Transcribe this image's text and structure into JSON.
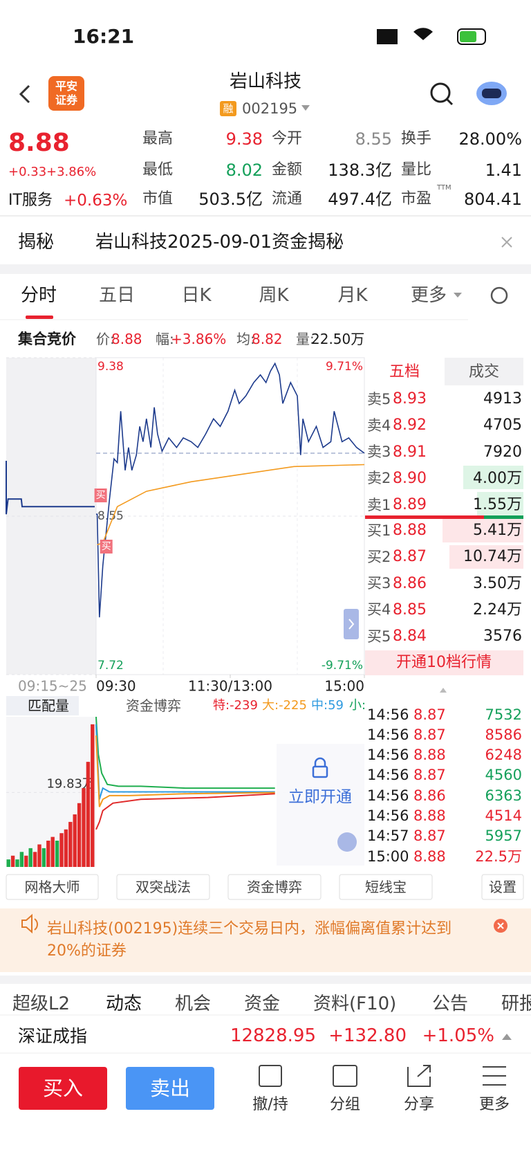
{
  "status_bar": {
    "time": "16:21"
  },
  "header": {
    "logo": [
      "平安",
      "证券"
    ],
    "title": "岩山科技",
    "badge": "融",
    "code": "002195"
  },
  "quote": {
    "price": "8.88",
    "change": "+0.33",
    "change_pct": "+3.86%",
    "sector": "IT服务",
    "sector_pct": "+0.63%",
    "ttm": "TTM",
    "stats": [
      [
        "最高",
        "9.38"
      ],
      [
        "今开",
        "8.55"
      ],
      [
        "换手",
        "28.00%"
      ],
      [
        "最低",
        "8.02"
      ],
      [
        "金额",
        "138.3亿"
      ],
      [
        "量比",
        "1.41"
      ],
      [
        "市值",
        "503.5亿"
      ],
      [
        "流通",
        "497.4亿"
      ],
      [
        "市盈",
        "804.41"
      ]
    ]
  },
  "banner": {
    "label": "揭秘",
    "text": "岩山科技2025-09-01资金揭秘"
  },
  "tabs": [
    "分时",
    "五日",
    "日K",
    "周K",
    "月K",
    "更多"
  ],
  "info_bar": {
    "label": "集合竞价",
    "items": [
      [
        "价:",
        "8.88"
      ],
      [
        "幅:",
        "+3.86%"
      ],
      [
        "均:",
        "8.82"
      ],
      [
        "量:",
        "22.50万"
      ]
    ]
  },
  "chart_data": [
    {
      "type": "line",
      "xlim": [
        0,
        240
      ],
      "xticks": [
        {
          "value": 0,
          "label": "09:30"
        },
        {
          "value": 120,
          "label": "11:30/13:00"
        },
        {
          "value": 240,
          "label": "15:00"
        }
      ],
      "ylim": [
        7.72,
        9.38
      ],
      "yticks": [
        7.72,
        8.55,
        9.38
      ],
      "y2lim": [
        -9.71,
        9.71
      ],
      "y2ticks": [
        {
          "value": 9.71,
          "label": "9.71%"
        },
        {
          "value": -9.71,
          "label": "-9.71%"
        }
      ],
      "series": [
        {
          "color": "#1c3a8c",
          "x": [
            0,
            1,
            3,
            6,
            12,
            16,
            19,
            22,
            26,
            29,
            32,
            36,
            39,
            42,
            45,
            49,
            52,
            55,
            59,
            65,
            72,
            78,
            85,
            91,
            98,
            105,
            111,
            118,
            124,
            128,
            134,
            141,
            147,
            152,
            156,
            160,
            164,
            167,
            174,
            180,
            183,
            185,
            190,
            197,
            203,
            210,
            213,
            220,
            226,
            233,
            240
          ],
          "values": [
            8.56,
            8.56,
            8.02,
            8.29,
            8.64,
            8.85,
            8.83,
            9.1,
            8.79,
            8.91,
            8.79,
            8.87,
            9.02,
            8.94,
            9.06,
            8.91,
            9.12,
            8.98,
            8.89,
            8.96,
            8.91,
            8.96,
            8.94,
            8.91,
            8.98,
            9.06,
            9.02,
            9.1,
            9.21,
            9.14,
            9.18,
            9.25,
            9.29,
            9.25,
            9.31,
            9.35,
            9.29,
            9.14,
            9.25,
            9.18,
            8.87,
            9.06,
            8.94,
            9.02,
            8.91,
            8.94,
            9.1,
            8.94,
            8.96,
            8.91,
            8.88
          ]
        },
        {
          "color": "#f39a1e",
          "x": [
            1,
            6,
            19,
            45,
            85,
            131,
            177,
            240
          ],
          "values": [
            8.4,
            8.41,
            8.6,
            8.68,
            8.73,
            8.77,
            8.81,
            8.82
          ]
        }
      ],
      "auction": {
        "label": "09:15~25",
        "xlim": [
          0,
          10
        ],
        "color": "#1c3a8c",
        "x": [
          0,
          0,
          0.2,
          1.7,
          1.8,
          10
        ],
        "values": [
          8.84,
          8.56,
          8.64,
          8.64,
          8.6,
          8.6
        ]
      },
      "markers": [
        "买",
        "买"
      ]
    },
    {
      "type": "line",
      "title": "匹配量",
      "xlim": [
        0,
        240
      ],
      "ylim": [
        0,
        40
      ],
      "yticks": [
        {
          "value": 19.83,
          "label": "19.83万"
        }
      ],
      "series": [
        {
          "color": "#1fae4f",
          "x": [
            0,
            2,
            5,
            10,
            20,
            40,
            80,
            160
          ],
          "values": [
            40,
            30,
            25,
            22,
            21.5,
            21.5,
            21,
            21
          ]
        },
        {
          "color": "#2f9be0",
          "x": [
            0,
            3,
            6,
            12,
            25,
            60,
            160
          ],
          "values": [
            38,
            18,
            21,
            20,
            20,
            20,
            20
          ]
        },
        {
          "color": "#f39a1e",
          "x": [
            0,
            3,
            6,
            12,
            30,
            80,
            160
          ],
          "values": [
            35,
            16,
            18,
            19,
            19,
            19.5,
            19.8
          ]
        },
        {
          "color": "#e02b2b",
          "x": [
            0,
            3,
            6,
            15,
            40,
            100,
            160
          ],
          "values": [
            10,
            12,
            15,
            17,
            18,
            18.5,
            19.5
          ]
        }
      ],
      "auction_bars": {
        "values": [
          2,
          3,
          2,
          4,
          3,
          5,
          4,
          6,
          5,
          7,
          8,
          7,
          9,
          10,
          12,
          14,
          17,
          21,
          28,
          38
        ],
        "colors": [
          "#1fae4f",
          "#e02b2b",
          "#1fae4f",
          "#1fae4f",
          "#e02b2b",
          "#1fae4f",
          "#e02b2b",
          "#e02b2b",
          "#1fae4f",
          "#e02b2b",
          "#e02b2b",
          "#1fae4f",
          "#e02b2b",
          "#e02b2b",
          "#e02b2b",
          "#e02b2b",
          "#e02b2b",
          "#e02b2b",
          "#e02b2b",
          "#e02b2b"
        ]
      }
    }
  ],
  "order_book": {
    "tabs": [
      "五档",
      "成交"
    ],
    "asks": [
      [
        "卖5",
        "8.93",
        "4913"
      ],
      [
        "卖4",
        "8.92",
        "4705"
      ],
      [
        "卖3",
        "8.91",
        "7920"
      ],
      [
        "卖2",
        "8.90",
        "4.00万"
      ],
      [
        "卖1",
        "8.89",
        "1.55万"
      ]
    ],
    "bids": [
      [
        "买1",
        "8.88",
        "5.41万"
      ],
      [
        "买2",
        "8.87",
        "10.74万"
      ],
      [
        "买3",
        "8.86",
        "3.50万"
      ],
      [
        "买4",
        "8.85",
        "2.24万"
      ],
      [
        "买5",
        "8.84",
        "3576"
      ]
    ],
    "open": "开通10档行情"
  },
  "trades": [
    {
      "time": "14:56",
      "price": "8.87",
      "volume": "7532",
      "color": "#14a05a"
    },
    {
      "time": "14:56",
      "price": "8.87",
      "volume": "8586",
      "color": "#e8222f"
    },
    {
      "time": "14:56",
      "price": "8.88",
      "volume": "6248",
      "color": "#e8222f"
    },
    {
      "time": "14:56",
      "price": "8.87",
      "volume": "4560",
      "color": "#14a05a"
    },
    {
      "time": "14:56",
      "price": "8.86",
      "volume": "6363",
      "color": "#14a05a"
    },
    {
      "time": "14:56",
      "price": "8.88",
      "volume": "4514",
      "color": "#e8222f"
    },
    {
      "time": "14:57",
      "price": "8.87",
      "volume": "5957",
      "color": "#14a05a"
    },
    {
      "time": "15:00",
      "price": "8.88",
      "volume": "22.5万",
      "color": "#e8222f"
    }
  ],
  "fund_bar": {
    "label": "匹配量",
    "tab": "资金博弈",
    "items": [
      "特:-239",
      "大:-225",
      "中:59",
      "小:"
    ],
    "lock": "立即开通"
  },
  "tools": [
    "网格大师",
    "双突战法",
    "资金博弈",
    "短线宝",
    "设置"
  ],
  "notice": "岩山科技(002195)连续三个交易日内，涨幅偏离值累计达到20%的证券",
  "sections": [
    "超级L2",
    "动态",
    "机会",
    "资金",
    "资料(F10)",
    "公告",
    "研报"
  ],
  "index": {
    "name": "深证成指",
    "value": "12828.95",
    "change": "+132.80",
    "pct": "+1.05%"
  },
  "actions": {
    "buy": "买入",
    "sell": "卖出",
    "items": [
      "撤/持",
      "分组",
      "分享",
      "更多"
    ]
  }
}
